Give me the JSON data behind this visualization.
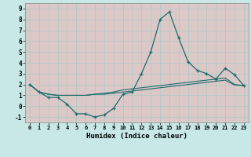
{
  "xlabel": "Humidex (Indice chaleur)",
  "xlim": [
    -0.5,
    23.5
  ],
  "ylim": [
    -1.5,
    9.5
  ],
  "xticks": [
    0,
    1,
    2,
    3,
    4,
    5,
    6,
    7,
    8,
    9,
    10,
    11,
    12,
    13,
    14,
    15,
    16,
    17,
    18,
    19,
    20,
    21,
    22,
    23
  ],
  "yticks": [
    -1,
    0,
    1,
    2,
    3,
    4,
    5,
    6,
    7,
    8,
    9
  ],
  "bg_color": "#c8e8e8",
  "plot_bg": "#e8d8d8",
  "line_color": "#1a6b6b",
  "grid_color": "#b8d0d0",
  "line1_x": [
    0,
    1,
    2,
    3,
    4,
    5,
    6,
    7,
    8,
    9,
    10,
    11,
    12,
    13,
    14,
    15,
    16,
    17,
    18,
    19,
    20,
    21,
    22,
    23
  ],
  "line1_y": [
    2.0,
    1.3,
    0.8,
    0.8,
    0.2,
    -0.7,
    -0.7,
    -1.0,
    -0.8,
    -0.2,
    1.1,
    1.3,
    3.0,
    5.0,
    8.0,
    8.7,
    6.3,
    4.1,
    3.3,
    3.0,
    2.5,
    3.5,
    2.9,
    1.9
  ],
  "line2_x": [
    0,
    1,
    2,
    3,
    4,
    5,
    6,
    7,
    8,
    9,
    10,
    11,
    12,
    13,
    14,
    15,
    16,
    17,
    18,
    19,
    20,
    21,
    22,
    23
  ],
  "line2_y": [
    2.0,
    1.3,
    1.1,
    1.0,
    1.0,
    1.0,
    1.0,
    1.1,
    1.1,
    1.2,
    1.3,
    1.4,
    1.5,
    1.6,
    1.7,
    1.8,
    1.9,
    2.0,
    2.1,
    2.2,
    2.3,
    2.4,
    1.95,
    1.9
  ],
  "line3_x": [
    0,
    1,
    2,
    3,
    4,
    5,
    6,
    7,
    8,
    9,
    10,
    11,
    12,
    13,
    14,
    15,
    16,
    17,
    18,
    19,
    20,
    21,
    22,
    23
  ],
  "line3_y": [
    2.0,
    1.3,
    1.1,
    1.0,
    1.0,
    1.0,
    1.0,
    1.1,
    1.2,
    1.3,
    1.5,
    1.6,
    1.7,
    1.8,
    1.9,
    2.0,
    2.1,
    2.2,
    2.3,
    2.4,
    2.5,
    2.6,
    2.0,
    1.9
  ]
}
